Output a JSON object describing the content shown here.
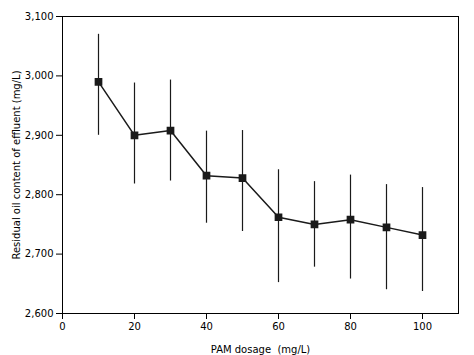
{
  "chart_data": {
    "type": "line",
    "x": [
      10,
      20,
      30,
      40,
      50,
      60,
      70,
      80,
      90,
      100
    ],
    "values": [
      2990,
      2900,
      2908,
      2832,
      2828,
      2762,
      2750,
      2758,
      2745,
      2732
    ],
    "yerr_upper": [
      80,
      88,
      85,
      75,
      80,
      80,
      72,
      75,
      72,
      80
    ],
    "yerr_lower": [
      90,
      82,
      85,
      80,
      90,
      110,
      72,
      100,
      105,
      95
    ],
    "xlabel": "PAM dosage  (mg/L)",
    "ylabel": "Residual oil content of effluent (mg/L)",
    "xlim": [
      0,
      110
    ],
    "ylim": [
      2600,
      3100
    ],
    "xticks": [
      0,
      20,
      40,
      60,
      80,
      100
    ],
    "yticks": [
      2600,
      2700,
      2800,
      2900,
      3000,
      3100
    ],
    "color": "#1a1a1a",
    "marker": "square"
  }
}
